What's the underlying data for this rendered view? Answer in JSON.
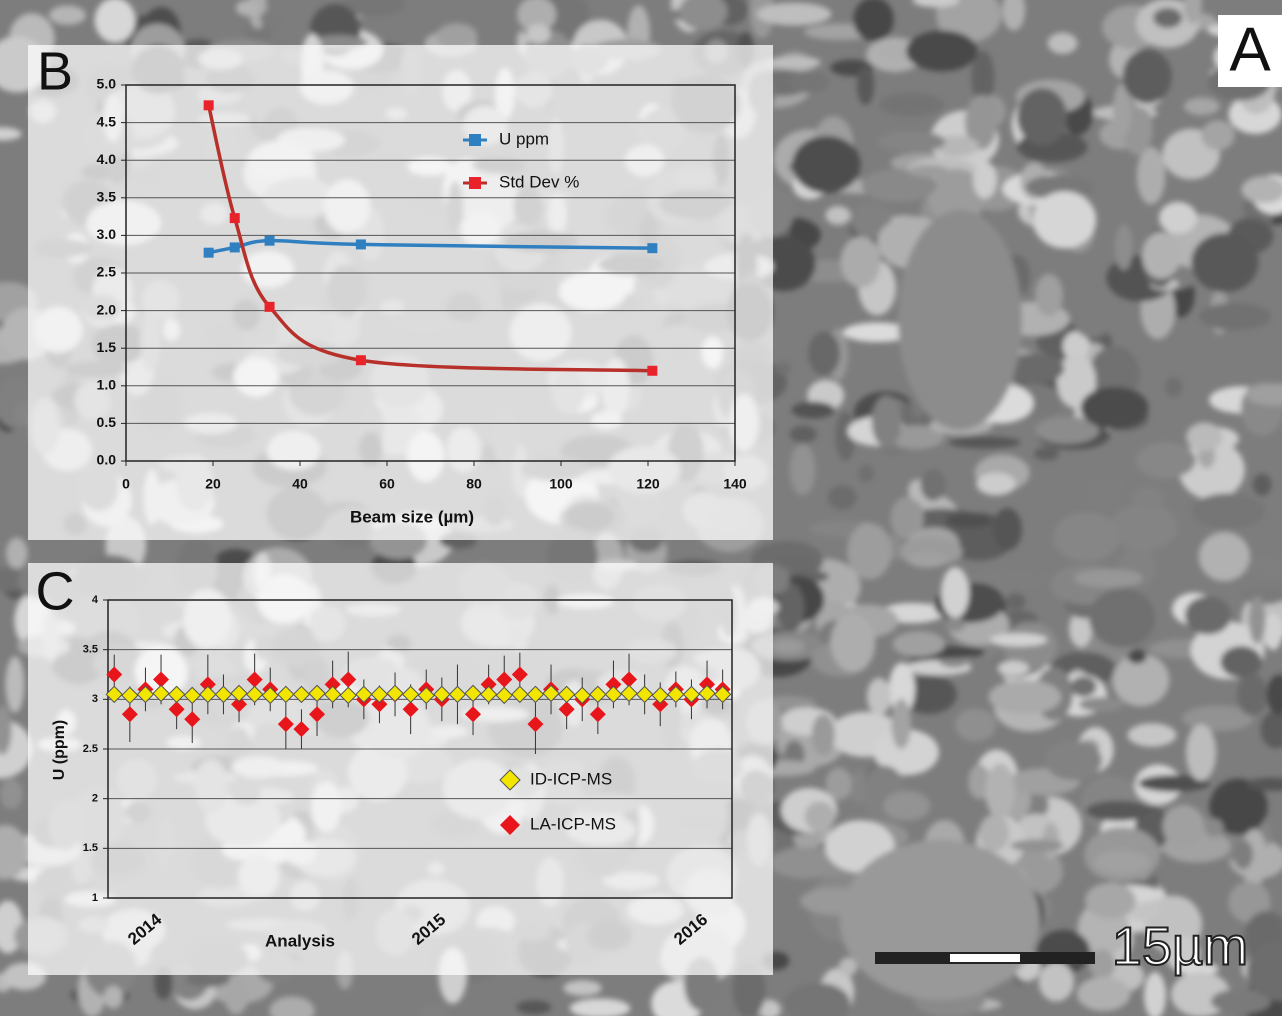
{
  "image": {
    "panel_label": "A",
    "scale_bar": "15µm"
  },
  "chart_data": [
    {
      "type": "line",
      "panel_label": "B",
      "x_label": "Beam size (µm)",
      "x": [
        19,
        25,
        33,
        54,
        121
      ],
      "series": [
        {
          "name": "U ppm",
          "color": "#2f7fc1",
          "marker_color": "#2f7fc1",
          "values": [
            2.77,
            2.84,
            2.93,
            2.88,
            2.83
          ]
        },
        {
          "name": "Std Dev %",
          "color": "#b8302a",
          "marker_color": "#e8232a",
          "values": [
            4.73,
            3.23,
            2.05,
            1.34,
            1.2
          ]
        }
      ],
      "xlim": [
        0,
        140
      ],
      "xticks": [
        0,
        20,
        40,
        60,
        80,
        100,
        120,
        140
      ],
      "ylim": [
        0,
        5
      ],
      "yticks": [
        {
          "value": 0,
          "label": "0.0"
        },
        0.5,
        {
          "value": 1,
          "label": "1.0"
        },
        1.5,
        {
          "value": 2,
          "label": "2.0"
        },
        2.5,
        {
          "value": 3,
          "label": "3.0"
        },
        3.5,
        {
          "value": 4,
          "label": "4.0"
        },
        4.5,
        {
          "value": 5,
          "label": "5.0"
        }
      ],
      "grid": true
    },
    {
      "type": "scatter",
      "panel_label": "C",
      "x_label": "Analysis",
      "y_label": "U (ppm)",
      "x": [
        2,
        7,
        12,
        17,
        22,
        27,
        32,
        37,
        42,
        47,
        52,
        57,
        62,
        67,
        72,
        77,
        82,
        87,
        92,
        97,
        102,
        107,
        112,
        117,
        122,
        127,
        132,
        137,
        142,
        147,
        152,
        157,
        162,
        167,
        172,
        177,
        182,
        187,
        192,
        197
      ],
      "series": [
        {
          "name": "ID-ICP-MS",
          "color": "#f2e600",
          "values": [
            3.05,
            3.04,
            3.05,
            3.06,
            3.05,
            3.04,
            3.05,
            3.05,
            3.06,
            3.05,
            3.04,
            3.05,
            3.05,
            3.06,
            3.05,
            3.04,
            3.05,
            3.05,
            3.06,
            3.05,
            3.04,
            3.05,
            3.05,
            3.06,
            3.05,
            3.04,
            3.05,
            3.05,
            3.06,
            3.05,
            3.04,
            3.05,
            3.05,
            3.06,
            3.05,
            3.04,
            3.05,
            3.05,
            3.06,
            3.05
          ]
        },
        {
          "name": "LA-ICP-MS",
          "color": "#e8151b",
          "values": [
            3.25,
            2.85,
            3.1,
            3.2,
            2.9,
            2.8,
            3.15,
            3.05,
            2.95,
            3.2,
            3.1,
            2.75,
            2.7,
            2.85,
            3.15,
            3.2,
            3.0,
            2.95,
            3.05,
            2.9,
            3.1,
            3.0,
            3.05,
            2.85,
            3.15,
            3.2,
            3.25,
            2.75,
            3.1,
            2.9,
            3.0,
            2.85,
            3.15,
            3.2,
            3.05,
            2.95,
            3.1,
            3.0,
            3.15,
            3.1
          ],
          "errors": [
            0.2,
            0.28,
            0.22,
            0.25,
            0.2,
            0.24,
            0.3,
            0.2,
            0.18,
            0.26,
            0.22,
            0.25,
            0.2,
            0.22,
            0.24,
            0.28,
            0.2,
            0.19,
            0.22,
            0.25,
            0.2,
            0.22,
            0.3,
            0.21,
            0.2,
            0.24,
            0.22,
            0.3,
            0.25,
            0.2,
            0.22,
            0.2,
            0.24,
            0.26,
            0.2,
            0.22,
            0.18,
            0.2,
            0.24,
            0.2
          ]
        }
      ],
      "xlim": [
        0,
        200
      ],
      "xticks": [
        {
          "value": 12,
          "label": "2014"
        },
        {
          "value": 103,
          "label": "2015"
        },
        {
          "value": 187,
          "label": "2016"
        }
      ],
      "ylim": [
        1,
        4
      ],
      "yticks": [
        1,
        1.5,
        2,
        2.5,
        3,
        3.5,
        4
      ],
      "grid": true
    }
  ]
}
